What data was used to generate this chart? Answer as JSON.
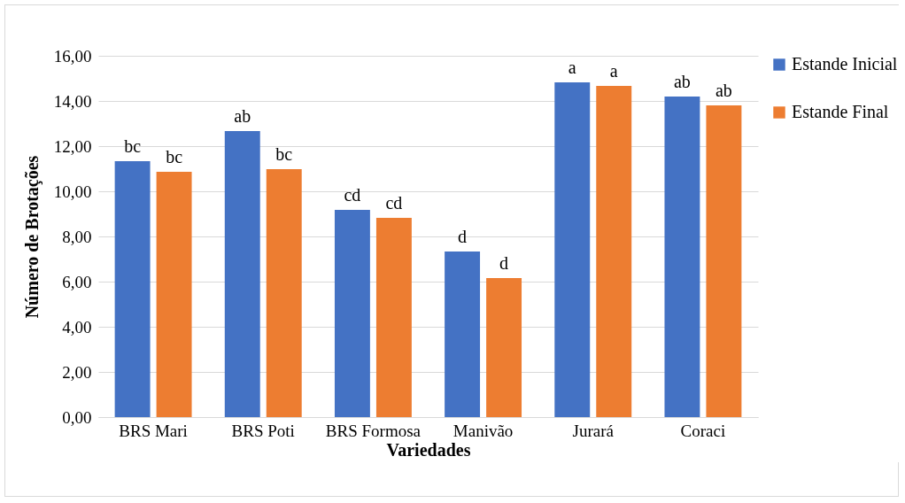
{
  "chart_data": {
    "type": "bar",
    "xlabel": "Variedades",
    "ylabel": "Número de Brotações",
    "categories": [
      "BRS Mari",
      "BRS Poti",
      "BRS Formosa",
      "Manivão",
      "Jurará",
      "Coraci"
    ],
    "series": [
      {
        "name": "Estande Inicial",
        "color": "#4472c4",
        "values": [
          11.33,
          12.67,
          9.18,
          7.33,
          14.82,
          14.2
        ],
        "value_labels": [
          "bc",
          "ab",
          "cd",
          "d",
          "a",
          "ab"
        ]
      },
      {
        "name": "Estande Final",
        "color": "#ed7d31",
        "values": [
          10.86,
          10.98,
          8.82,
          6.16,
          14.67,
          13.8
        ],
        "value_labels": [
          "bc",
          "bc",
          "cd",
          "d",
          "a",
          "ab"
        ]
      }
    ],
    "ylim": [
      0,
      16
    ],
    "yticks": [
      {
        "value": 0,
        "label": "0,00"
      },
      {
        "value": 2,
        "label": "2,00"
      },
      {
        "value": 4,
        "label": "4,00"
      },
      {
        "value": 6,
        "label": "6,00"
      },
      {
        "value": 8,
        "label": "8,00"
      },
      {
        "value": 10,
        "label": "10,00"
      },
      {
        "value": 12,
        "label": "12,00"
      },
      {
        "value": 14,
        "label": "14,00"
      },
      {
        "value": 16,
        "label": "16,00"
      }
    ],
    "grid": "y",
    "legend": "right"
  }
}
